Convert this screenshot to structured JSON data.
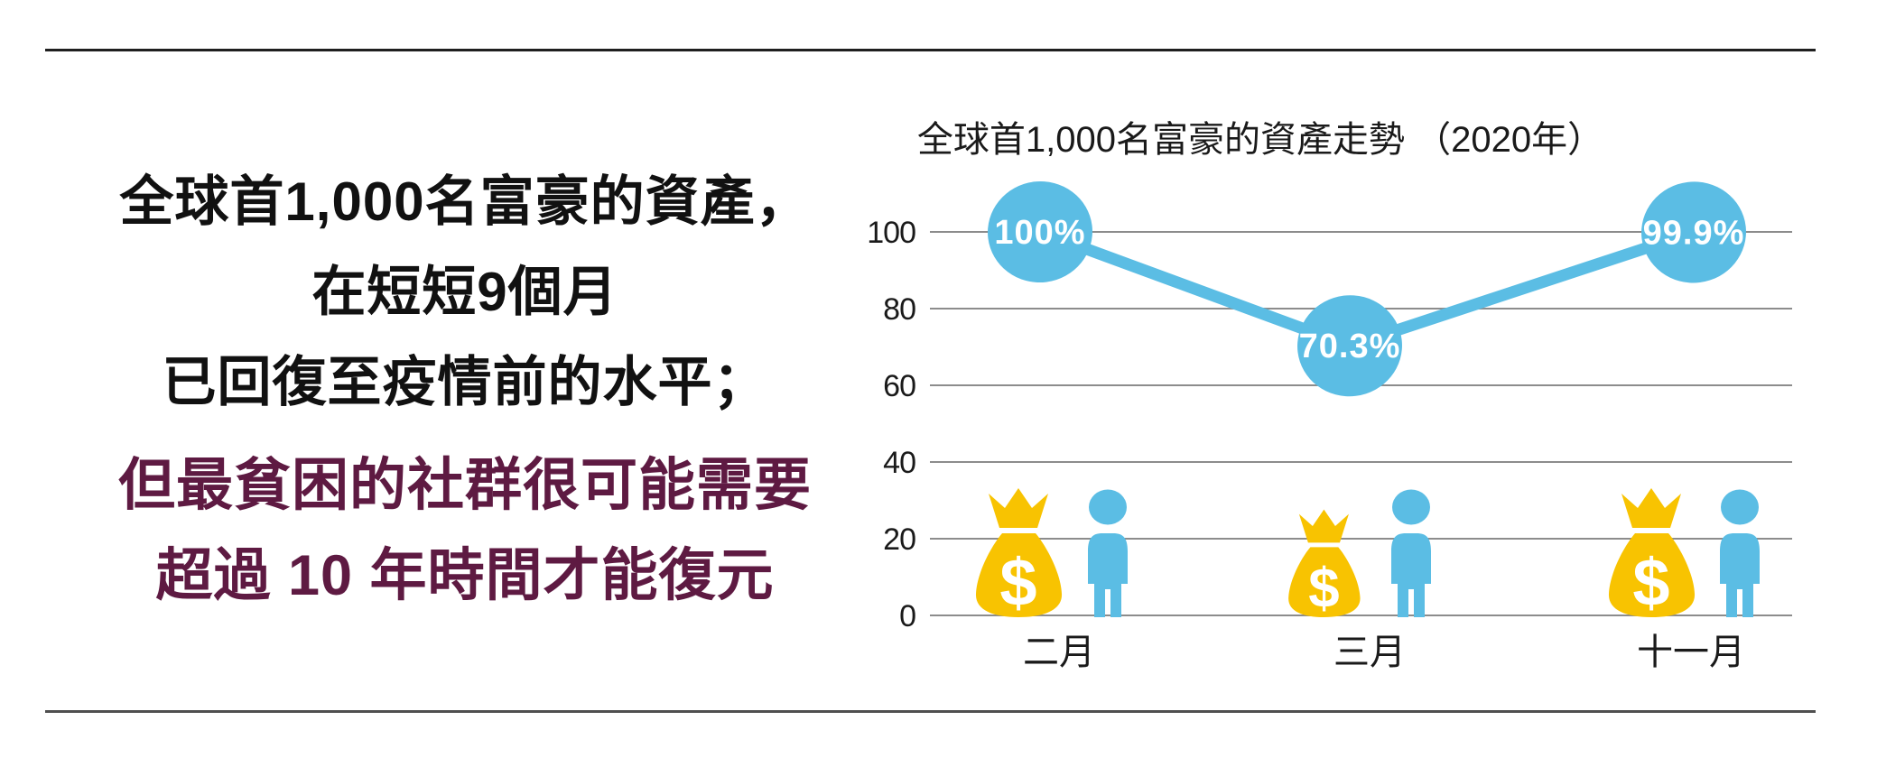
{
  "page": {
    "background": "#ffffff",
    "top_divider_color": "#1f1f1f",
    "bottom_divider_color": "#4f4f4f"
  },
  "left_panel": {
    "text_color": "#111111",
    "accent_color": "#5E1A42",
    "lines": [
      {
        "text": "全球首1,000名富豪的資產，",
        "style": "black"
      },
      {
        "text": "在短短9個月",
        "style": "black"
      },
      {
        "text": "已回復至疫情前的水平；",
        "style": "black"
      },
      {
        "text": "但最貧困的社群很可能需要",
        "style": "accent"
      },
      {
        "text": "超過 10 年時間才能復元",
        "style": "accent"
      }
    ]
  },
  "chart_data": {
    "type": "line",
    "title": "全球首1,000名富豪的資產走勢 （2020年）",
    "categories": [
      "二月",
      "三月",
      "十一月"
    ],
    "values": [
      100,
      70.3,
      99.9
    ],
    "point_labels": [
      "100%",
      "70.3%",
      "99.9%"
    ],
    "yticks": [
      0,
      20,
      40,
      60,
      80,
      100
    ],
    "ylim": [
      0,
      100
    ],
    "xlabel": "",
    "ylabel": "",
    "grid": true,
    "legend": "none",
    "colors": {
      "line": "#5BBDE4",
      "bubble": "#5BBDE4",
      "bubble_text": "#ffffff",
      "gridline": "#8c8c8c",
      "axis_text": "#1a1a1a",
      "money_bag": "#F8C301",
      "person": "#5BBDE4",
      "dollar_sign": "#ffffff"
    },
    "icons": {
      "money_bag_name": "money-bag-icon",
      "money_bag_glyph": "$",
      "person_name": "person-icon"
    }
  }
}
